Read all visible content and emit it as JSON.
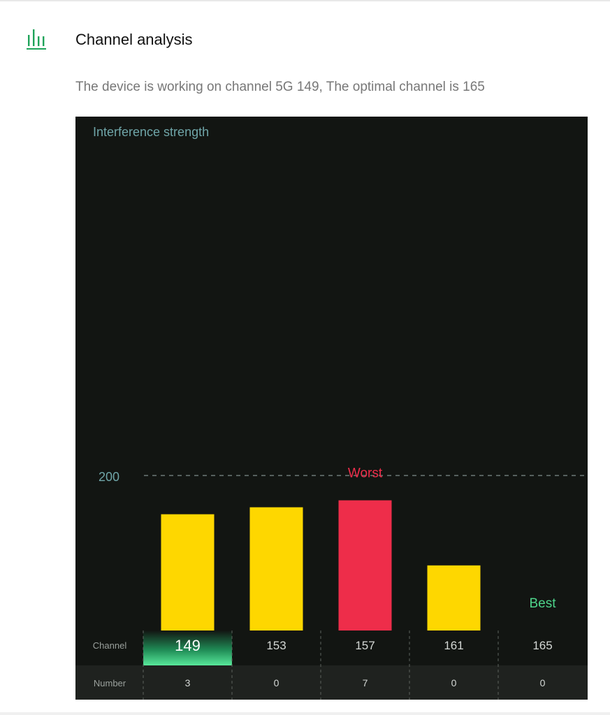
{
  "section": {
    "title": "Channel analysis",
    "icon": "signal-bars-icon",
    "subtitle": "The device is working on channel 5G 149, The optimal channel is 165"
  },
  "colors": {
    "accent": "#1fa35a",
    "panel_bg": "#121512",
    "bar_normal": "#fed700",
    "bar_worst": "#ee2d4a",
    "best_label": "#4ed48a",
    "axis_text": "#6fa5a8"
  },
  "chart_data": {
    "type": "bar",
    "ylabel": "Interference strength",
    "ref_line": 200,
    "ref_line_label": "200",
    "ylim": [
      0,
      330
    ],
    "categories": [
      "149",
      "153",
      "157",
      "161",
      "165"
    ],
    "values": [
      150,
      159,
      168,
      84,
      0
    ],
    "number_counts": [
      "3",
      "0",
      "7",
      "0",
      "0"
    ],
    "current_channel": "149",
    "worst_channel": "157",
    "best_channel": "165",
    "annotations": {
      "worst": "Worst",
      "best": "Best"
    },
    "row_labels": {
      "channel": "Channel",
      "number": "Number"
    }
  }
}
